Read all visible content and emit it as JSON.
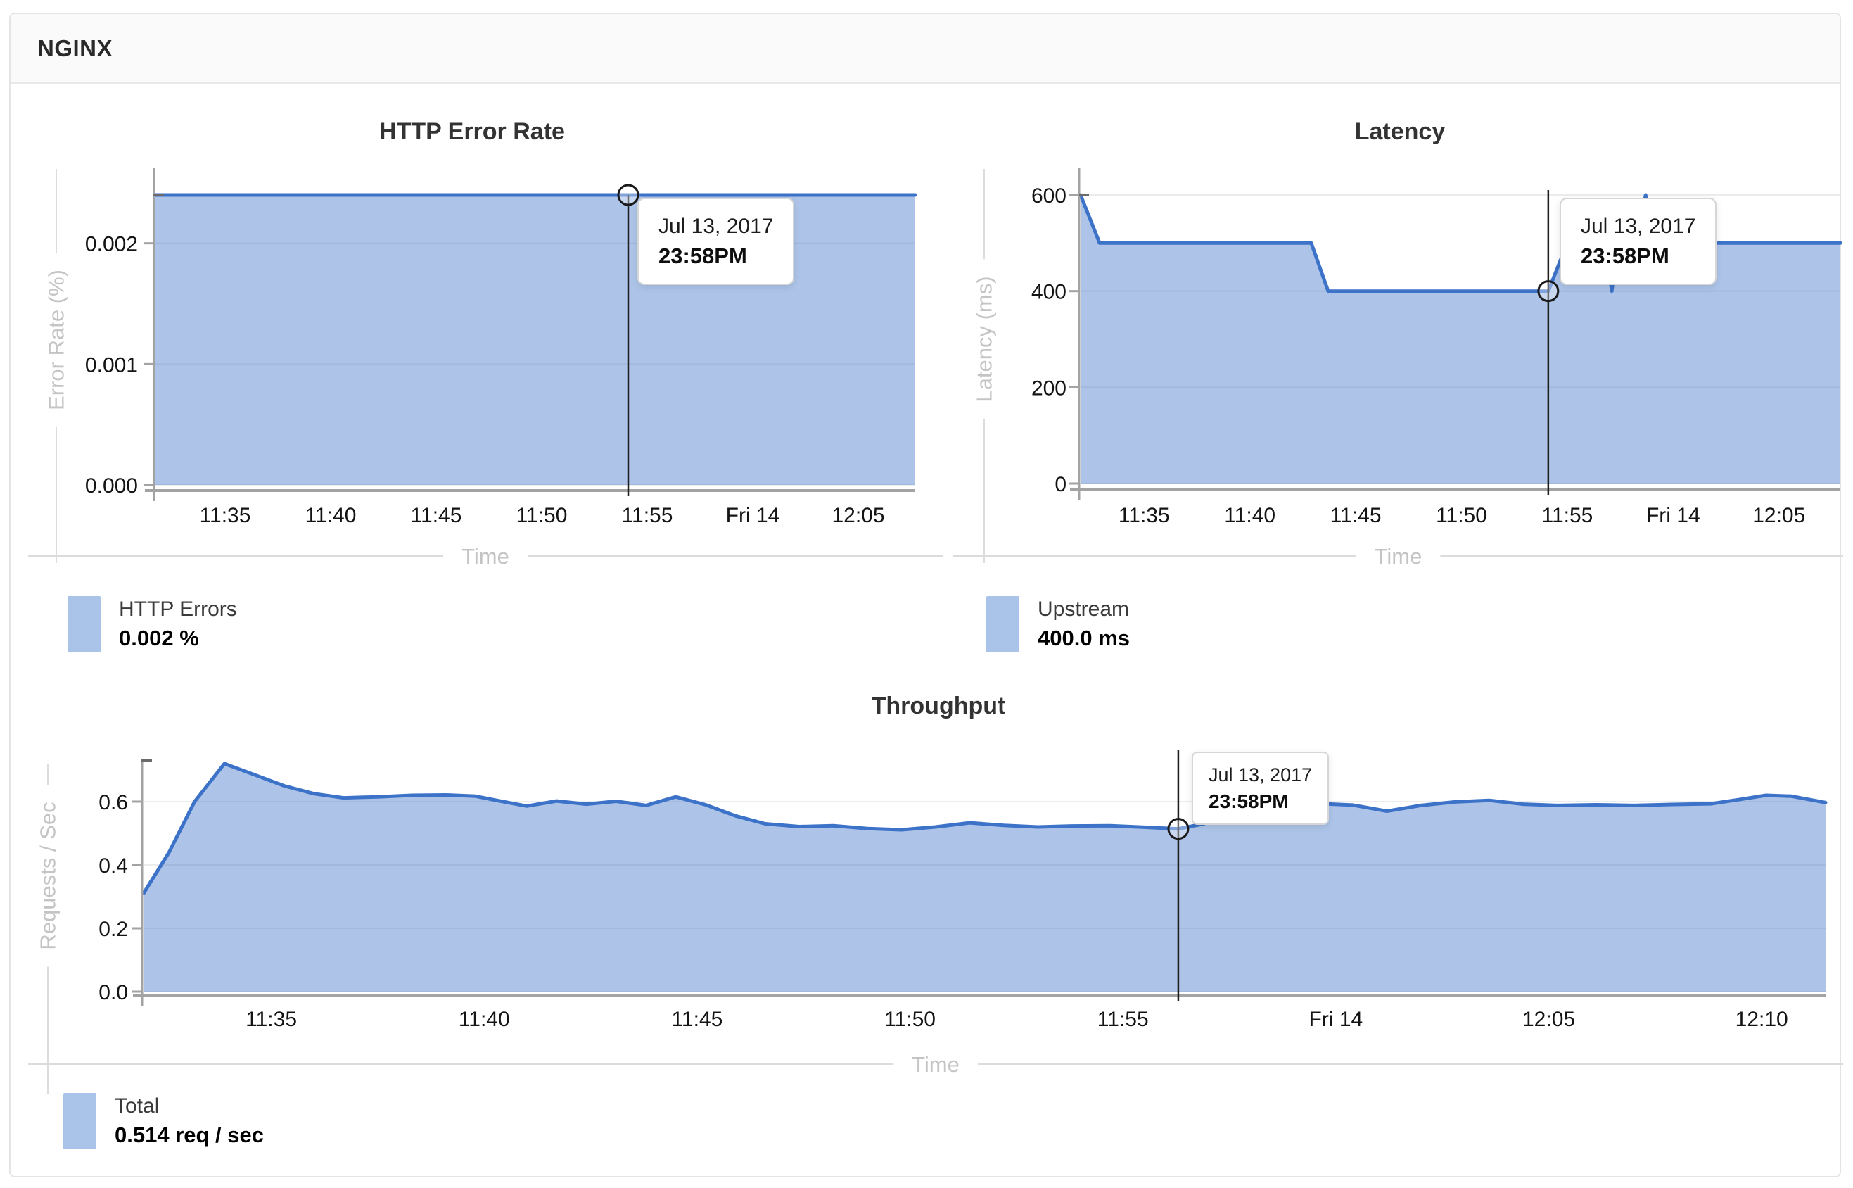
{
  "header": {
    "title": "NGINX"
  },
  "tooltip": {
    "date": "Jul 13, 2017",
    "time": "23:58PM"
  },
  "colors": {
    "line": "#3c72c8",
    "fill": "#aac6e9",
    "fill_rgba": "rgba(59,115,200,0.42)",
    "grid": "#ececec",
    "axis": "#a3a3a3",
    "axis_cap": "#6a6a6a",
    "tick_label": "#141414",
    "axis_title": "#c4c4c4",
    "axis_title_rule": "#dcdcdc",
    "chart_title": "#333333",
    "crosshair": "#1f1f1f",
    "header_bg": "#fafafa",
    "card_border": "#e4e4e4"
  },
  "chart_data": [
    {
      "type": "area",
      "title": "HTTP Error Rate",
      "xlabel": "Time",
      "ylabel": "Error Rate (%)",
      "ylim": [
        0,
        0.0024
      ],
      "xlim_minutes": [
        691.7,
        727.7
      ],
      "yticks": [
        {
          "v": 0,
          "label": "0.000"
        },
        {
          "v": 0.001,
          "label": "0.001"
        },
        {
          "v": 0.002,
          "label": "0.002"
        }
      ],
      "xticks": [
        {
          "m": 695,
          "label": "11:35"
        },
        {
          "m": 700,
          "label": "11:40"
        },
        {
          "m": 705,
          "label": "11:45"
        },
        {
          "m": 710,
          "label": "11:50"
        },
        {
          "m": 715,
          "label": "11:55"
        },
        {
          "m": 720,
          "label": "Fri 14"
        },
        {
          "m": 725,
          "label": "12:05"
        }
      ],
      "series": [
        {
          "name": "HTTP Errors",
          "points": [
            [
              691.7,
              0.0024
            ],
            [
              727.7,
              0.0024
            ]
          ]
        }
      ],
      "marker": {
        "m": 714.1,
        "v": 0.0024
      },
      "legend": {
        "label": "HTTP Errors",
        "value": "0.002 %"
      }
    },
    {
      "type": "area",
      "title": "Latency",
      "xlabel": "Time",
      "ylabel": "Latency (ms)",
      "ylim": [
        0,
        600
      ],
      "xlim_minutes": [
        692,
        727.9
      ],
      "yticks": [
        {
          "v": 0,
          "label": "0"
        },
        {
          "v": 200,
          "label": "200"
        },
        {
          "v": 400,
          "label": "400"
        },
        {
          "v": 600,
          "label": "600"
        }
      ],
      "xticks": [
        {
          "m": 695,
          "label": "11:35"
        },
        {
          "m": 700,
          "label": "11:40"
        },
        {
          "m": 705,
          "label": "11:45"
        },
        {
          "m": 710,
          "label": "11:50"
        },
        {
          "m": 715,
          "label": "11:55"
        },
        {
          "m": 720,
          "label": "Fri 14"
        },
        {
          "m": 725,
          "label": "12:05"
        }
      ],
      "series": [
        {
          "name": "Upstream",
          "points": [
            [
              692,
              600
            ],
            [
              692.9,
              500
            ],
            [
              702.9,
              500
            ],
            [
              703.7,
              400
            ],
            [
              714.1,
              400
            ],
            [
              715.0,
              500
            ],
            [
              716.8,
              500
            ],
            [
              717.1,
              400
            ],
            [
              717.4,
              500
            ],
            [
              718.3,
              500
            ],
            [
              718.7,
              600
            ],
            [
              719.1,
              500
            ],
            [
              727.9,
              500
            ]
          ]
        }
      ],
      "marker": {
        "m": 714.1,
        "v": 400
      },
      "legend": {
        "label": "Upstream",
        "value": "400.0 ms"
      }
    },
    {
      "type": "area",
      "title": "Throughput",
      "xlabel": "Time",
      "ylabel": "Requests / Sec",
      "ylim": [
        0,
        0.731
      ],
      "xlim_minutes": [
        692,
        731.5
      ],
      "yticks": [
        {
          "v": 0,
          "label": "0.0"
        },
        {
          "v": 0.2,
          "label": "0.2"
        },
        {
          "v": 0.4,
          "label": "0.4"
        },
        {
          "v": 0.6,
          "label": "0.6"
        }
      ],
      "xticks": [
        {
          "m": 695,
          "label": "11:35"
        },
        {
          "m": 700,
          "label": "11:40"
        },
        {
          "m": 705,
          "label": "11:45"
        },
        {
          "m": 710,
          "label": "11:50"
        },
        {
          "m": 715,
          "label": "11:55"
        },
        {
          "m": 720,
          "label": "Fri 14"
        },
        {
          "m": 725,
          "label": "12:05"
        },
        {
          "m": 730,
          "label": "12:10"
        }
      ],
      "series": [
        {
          "name": "Total",
          "points": [
            [
              692.0,
              0.31
            ],
            [
              692.6,
              0.44
            ],
            [
              693.2,
              0.6
            ],
            [
              693.9,
              0.72
            ],
            [
              694.6,
              0.685
            ],
            [
              695.3,
              0.65
            ],
            [
              696.0,
              0.625
            ],
            [
              696.7,
              0.612
            ],
            [
              697.5,
              0.615
            ],
            [
              698.3,
              0.62
            ],
            [
              699.1,
              0.621
            ],
            [
              699.8,
              0.617
            ],
            [
              700.4,
              0.601
            ],
            [
              701.0,
              0.586
            ],
            [
              701.7,
              0.602
            ],
            [
              702.4,
              0.592
            ],
            [
              703.1,
              0.601
            ],
            [
              703.8,
              0.588
            ],
            [
              704.5,
              0.615
            ],
            [
              705.2,
              0.59
            ],
            [
              705.9,
              0.555
            ],
            [
              706.6,
              0.53
            ],
            [
              707.4,
              0.521
            ],
            [
              708.2,
              0.524
            ],
            [
              709.0,
              0.515
            ],
            [
              709.8,
              0.511
            ],
            [
              710.6,
              0.52
            ],
            [
              711.4,
              0.533
            ],
            [
              712.2,
              0.525
            ],
            [
              713.0,
              0.52
            ],
            [
              713.8,
              0.523
            ],
            [
              714.7,
              0.524
            ],
            [
              715.5,
              0.519
            ],
            [
              716.3,
              0.514
            ],
            [
              716.9,
              0.53
            ],
            [
              717.5,
              0.568
            ],
            [
              718.1,
              0.586
            ],
            [
              718.8,
              0.59
            ],
            [
              719.6,
              0.594
            ],
            [
              720.4,
              0.589
            ],
            [
              721.2,
              0.57
            ],
            [
              722.0,
              0.588
            ],
            [
              722.8,
              0.599
            ],
            [
              723.6,
              0.604
            ],
            [
              724.4,
              0.592
            ],
            [
              725.2,
              0.588
            ],
            [
              726.1,
              0.59
            ],
            [
              727.0,
              0.588
            ],
            [
              727.9,
              0.591
            ],
            [
              728.8,
              0.593
            ],
            [
              729.5,
              0.607
            ],
            [
              730.1,
              0.62
            ],
            [
              730.7,
              0.617
            ],
            [
              731.5,
              0.597
            ]
          ]
        }
      ],
      "marker": {
        "m": 716.3,
        "v": 0.514
      },
      "legend": {
        "label": "Total",
        "value": "0.514 req / sec"
      }
    }
  ]
}
